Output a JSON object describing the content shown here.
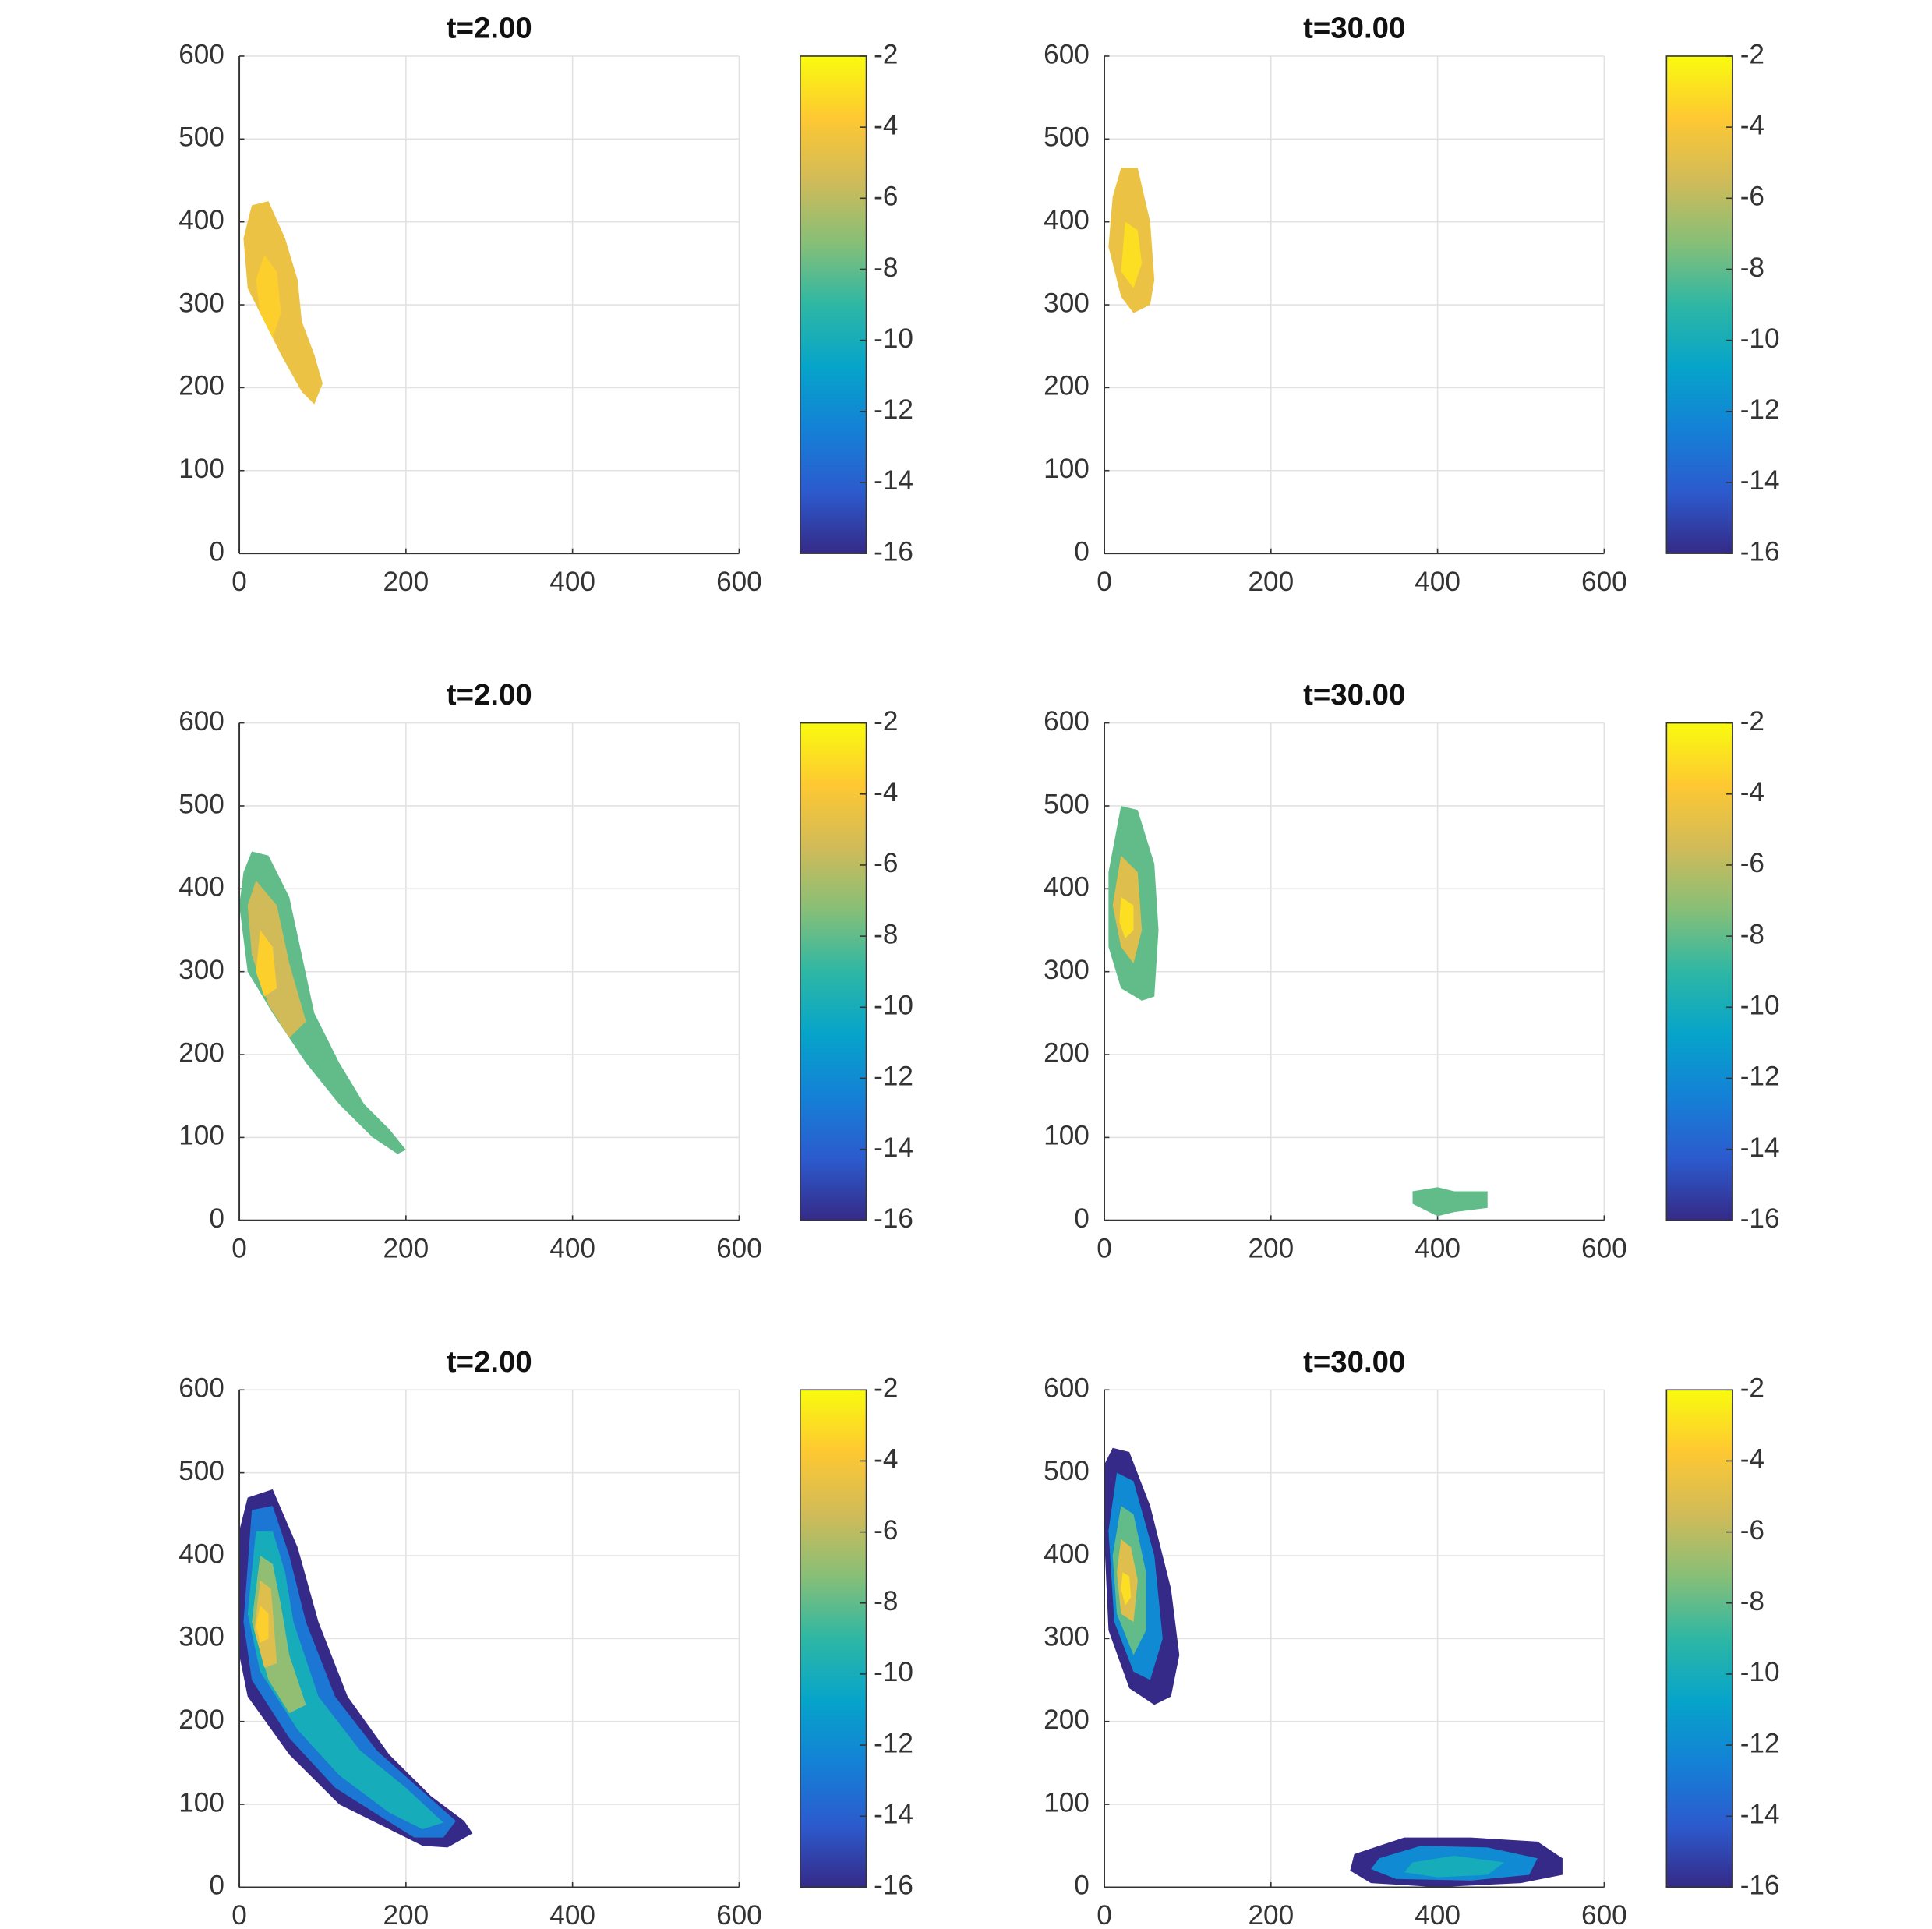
{
  "chart_data": [
    {
      "type": "heatmap",
      "title": "t=2.00",
      "xlim": [
        0,
        600
      ],
      "ylim": [
        0,
        600
      ],
      "xticks": [
        0,
        200,
        400,
        600
      ],
      "yticks": [
        0,
        100,
        200,
        300,
        400,
        500,
        600
      ],
      "grid": true,
      "clim": [
        -16,
        -2
      ],
      "cticks": [
        -2,
        -4,
        -6,
        -8,
        -10,
        -12,
        -14,
        -16
      ],
      "colormap": [
        "#352a87",
        "#2c5bce",
        "#1481d6",
        "#06a4ca",
        "#2eb7a4",
        "#87bf77",
        "#d1bb59",
        "#fec832",
        "#f9fb0e"
      ],
      "regions": [
        {
          "value": -4.5,
          "x": [
            15,
            35,
            55,
            70,
            75,
            90,
            100,
            90,
            75,
            50,
            30,
            10,
            5
          ],
          "y": [
            420,
            425,
            380,
            330,
            280,
            240,
            205,
            180,
            195,
            240,
            280,
            320,
            380
          ]
        },
        {
          "value": -3.5,
          "x": [
            30,
            45,
            50,
            40,
            25,
            20
          ],
          "y": [
            360,
            340,
            290,
            260,
            290,
            330
          ]
        }
      ]
    },
    {
      "type": "heatmap",
      "title": "t=30.00",
      "xlim": [
        0,
        600
      ],
      "ylim": [
        0,
        600
      ],
      "xticks": [
        0,
        200,
        400,
        600
      ],
      "yticks": [
        0,
        100,
        200,
        300,
        400,
        500,
        600
      ],
      "grid": true,
      "clim": [
        -16,
        -2
      ],
      "cticks": [
        -2,
        -4,
        -6,
        -8,
        -10,
        -12,
        -14,
        -16
      ],
      "colormap": [
        "#352a87",
        "#2c5bce",
        "#1481d6",
        "#06a4ca",
        "#2eb7a4",
        "#87bf77",
        "#d1bb59",
        "#fec832",
        "#f9fb0e"
      ],
      "regions": [
        {
          "value": -4.5,
          "x": [
            20,
            40,
            55,
            60,
            55,
            35,
            20,
            5,
            10
          ],
          "y": [
            465,
            465,
            400,
            330,
            300,
            290,
            310,
            370,
            430
          ]
        },
        {
          "value": -3,
          "x": [
            25,
            40,
            45,
            35,
            20
          ],
          "y": [
            400,
            390,
            350,
            320,
            340
          ]
        }
      ]
    },
    {
      "type": "heatmap",
      "title": "t=2.00",
      "xlim": [
        0,
        600
      ],
      "ylim": [
        0,
        600
      ],
      "xticks": [
        0,
        200,
        400,
        600
      ],
      "yticks": [
        0,
        100,
        200,
        300,
        400,
        500,
        600
      ],
      "grid": true,
      "clim": [
        -16,
        -2
      ],
      "cticks": [
        -2,
        -4,
        -6,
        -8,
        -10,
        -12,
        -14,
        -16
      ],
      "colormap": [
        "#352a87",
        "#2c5bce",
        "#1481d6",
        "#06a4ca",
        "#2eb7a4",
        "#87bf77",
        "#d1bb59",
        "#fec832",
        "#f9fb0e"
      ],
      "regions": [
        {
          "value": -8,
          "x": [
            15,
            35,
            60,
            75,
            90,
            120,
            150,
            180,
            200,
            190,
            160,
            120,
            80,
            40,
            10,
            0,
            5
          ],
          "y": [
            445,
            440,
            390,
            320,
            250,
            190,
            140,
            110,
            85,
            80,
            100,
            140,
            190,
            250,
            300,
            380,
            420
          ]
        },
        {
          "value": -5.5,
          "x": [
            20,
            45,
            60,
            80,
            60,
            35,
            15,
            10
          ],
          "y": [
            410,
            380,
            310,
            240,
            220,
            260,
            320,
            380
          ]
        },
        {
          "value": -3.5,
          "x": [
            25,
            40,
            45,
            30,
            20
          ],
          "y": [
            350,
            330,
            280,
            270,
            300
          ]
        }
      ]
    },
    {
      "type": "heatmap",
      "title": "t=30.00",
      "xlim": [
        0,
        600
      ],
      "ylim": [
        0,
        600
      ],
      "xticks": [
        0,
        200,
        400,
        600
      ],
      "yticks": [
        0,
        100,
        200,
        300,
        400,
        500,
        600
      ],
      "grid": true,
      "clim": [
        -16,
        -2
      ],
      "cticks": [
        -2,
        -4,
        -6,
        -8,
        -10,
        -12,
        -14,
        -16
      ],
      "colormap": [
        "#352a87",
        "#2c5bce",
        "#1481d6",
        "#06a4ca",
        "#2eb7a4",
        "#87bf77",
        "#d1bb59",
        "#fec832",
        "#f9fb0e"
      ],
      "regions": [
        {
          "value": -8,
          "x": [
            20,
            40,
            60,
            65,
            60,
            45,
            20,
            5,
            5
          ],
          "y": [
            500,
            495,
            430,
            350,
            270,
            265,
            280,
            330,
            420
          ]
        },
        {
          "value": -5,
          "x": [
            20,
            40,
            45,
            35,
            20,
            10
          ],
          "y": [
            440,
            420,
            350,
            310,
            330,
            380
          ]
        },
        {
          "value": -3,
          "x": [
            20,
            35,
            35,
            25,
            18
          ],
          "y": [
            390,
            380,
            350,
            340,
            360
          ]
        },
        {
          "value": -8,
          "x": [
            370,
            400,
            420,
            460,
            460,
            420,
            400,
            370
          ],
          "y": [
            35,
            40,
            35,
            35,
            15,
            10,
            5,
            20
          ]
        }
      ]
    },
    {
      "type": "heatmap",
      "title": "t=2.00",
      "xlim": [
        0,
        600
      ],
      "ylim": [
        0,
        600
      ],
      "xticks": [
        0,
        200,
        400,
        600
      ],
      "yticks": [
        0,
        100,
        200,
        300,
        400,
        500,
        600
      ],
      "grid": true,
      "clim": [
        -16,
        -2
      ],
      "cticks": [
        -2,
        -4,
        -6,
        -8,
        -10,
        -12,
        -14,
        -16
      ],
      "colormap": [
        "#352a87",
        "#2c5bce",
        "#1481d6",
        "#06a4ca",
        "#2eb7a4",
        "#87bf77",
        "#d1bb59",
        "#fec832",
        "#f9fb0e"
      ],
      "regions": [
        {
          "value": -16,
          "x": [
            10,
            40,
            70,
            95,
            130,
            180,
            230,
            270,
            280,
            250,
            220,
            180,
            120,
            60,
            10,
            0,
            0
          ],
          "y": [
            470,
            480,
            410,
            320,
            230,
            160,
            110,
            80,
            65,
            48,
            50,
            70,
            100,
            160,
            230,
            280,
            430
          ]
        },
        {
          "value": -13,
          "x": [
            15,
            40,
            60,
            80,
            115,
            165,
            215,
            260,
            245,
            210,
            170,
            115,
            60,
            15,
            5
          ],
          "y": [
            455,
            460,
            400,
            320,
            230,
            165,
            120,
            80,
            60,
            60,
            85,
            120,
            180,
            250,
            320
          ]
        },
        {
          "value": -10,
          "x": [
            20,
            40,
            55,
            65,
            95,
            145,
            200,
            245,
            220,
            180,
            120,
            70,
            25,
            10
          ],
          "y": [
            430,
            430,
            380,
            320,
            230,
            165,
            120,
            78,
            70,
            90,
            135,
            190,
            260,
            330
          ]
        },
        {
          "value": -7,
          "x": [
            25,
            40,
            50,
            60,
            80,
            60,
            35,
            15
          ],
          "y": [
            400,
            390,
            340,
            280,
            220,
            210,
            250,
            320
          ]
        },
        {
          "value": -5,
          "x": [
            25,
            38,
            42,
            45,
            30,
            18
          ],
          "y": [
            370,
            360,
            310,
            270,
            265,
            310
          ]
        },
        {
          "value": -3.5,
          "x": [
            25,
            35,
            35,
            25,
            20
          ],
          "y": [
            340,
            330,
            300,
            295,
            315
          ]
        }
      ]
    },
    {
      "type": "heatmap",
      "title": "t=30.00",
      "xlim": [
        0,
        600
      ],
      "ylim": [
        0,
        600
      ],
      "xticks": [
        0,
        200,
        400,
        600
      ],
      "yticks": [
        0,
        100,
        200,
        300,
        400,
        500,
        600
      ],
      "grid": true,
      "clim": [
        -16,
        -2
      ],
      "cticks": [
        -2,
        -4,
        -6,
        -8,
        -10,
        -12,
        -14,
        -16
      ],
      "colormap": [
        "#352a87",
        "#2c5bce",
        "#1481d6",
        "#06a4ca",
        "#2eb7a4",
        "#87bf77",
        "#d1bb59",
        "#fec832",
        "#f9fb0e"
      ],
      "regions": [
        {
          "value": -16,
          "x": [
            10,
            30,
            55,
            80,
            90,
            80,
            60,
            30,
            5,
            0,
            0
          ],
          "y": [
            530,
            525,
            460,
            360,
            280,
            230,
            220,
            240,
            310,
            420,
            510
          ]
        },
        {
          "value": -12,
          "x": [
            15,
            35,
            60,
            70,
            55,
            35,
            12,
            5
          ],
          "y": [
            500,
            490,
            400,
            300,
            250,
            260,
            320,
            430
          ]
        },
        {
          "value": -8,
          "x": [
            20,
            35,
            50,
            50,
            35,
            15,
            10
          ],
          "y": [
            460,
            450,
            380,
            310,
            280,
            330,
            400
          ]
        },
        {
          "value": -5,
          "x": [
            20,
            32,
            40,
            35,
            20,
            15
          ],
          "y": [
            420,
            410,
            370,
            320,
            330,
            380
          ]
        },
        {
          "value": -3,
          "x": [
            22,
            30,
            32,
            25,
            20
          ],
          "y": [
            380,
            375,
            350,
            340,
            360
          ]
        },
        {
          "value": -16,
          "x": [
            300,
            360,
            440,
            520,
            550,
            550,
            500,
            400,
            320,
            295
          ],
          "y": [
            40,
            60,
            60,
            55,
            35,
            15,
            5,
            0,
            5,
            20
          ]
        },
        {
          "value": -12,
          "x": [
            330,
            380,
            460,
            520,
            510,
            440,
            350,
            320
          ],
          "y": [
            35,
            50,
            48,
            35,
            15,
            8,
            10,
            22
          ]
        },
        {
          "value": -10,
          "x": [
            370,
            420,
            480,
            460,
            400,
            360
          ],
          "y": [
            30,
            38,
            30,
            15,
            12,
            18
          ]
        }
      ]
    }
  ]
}
